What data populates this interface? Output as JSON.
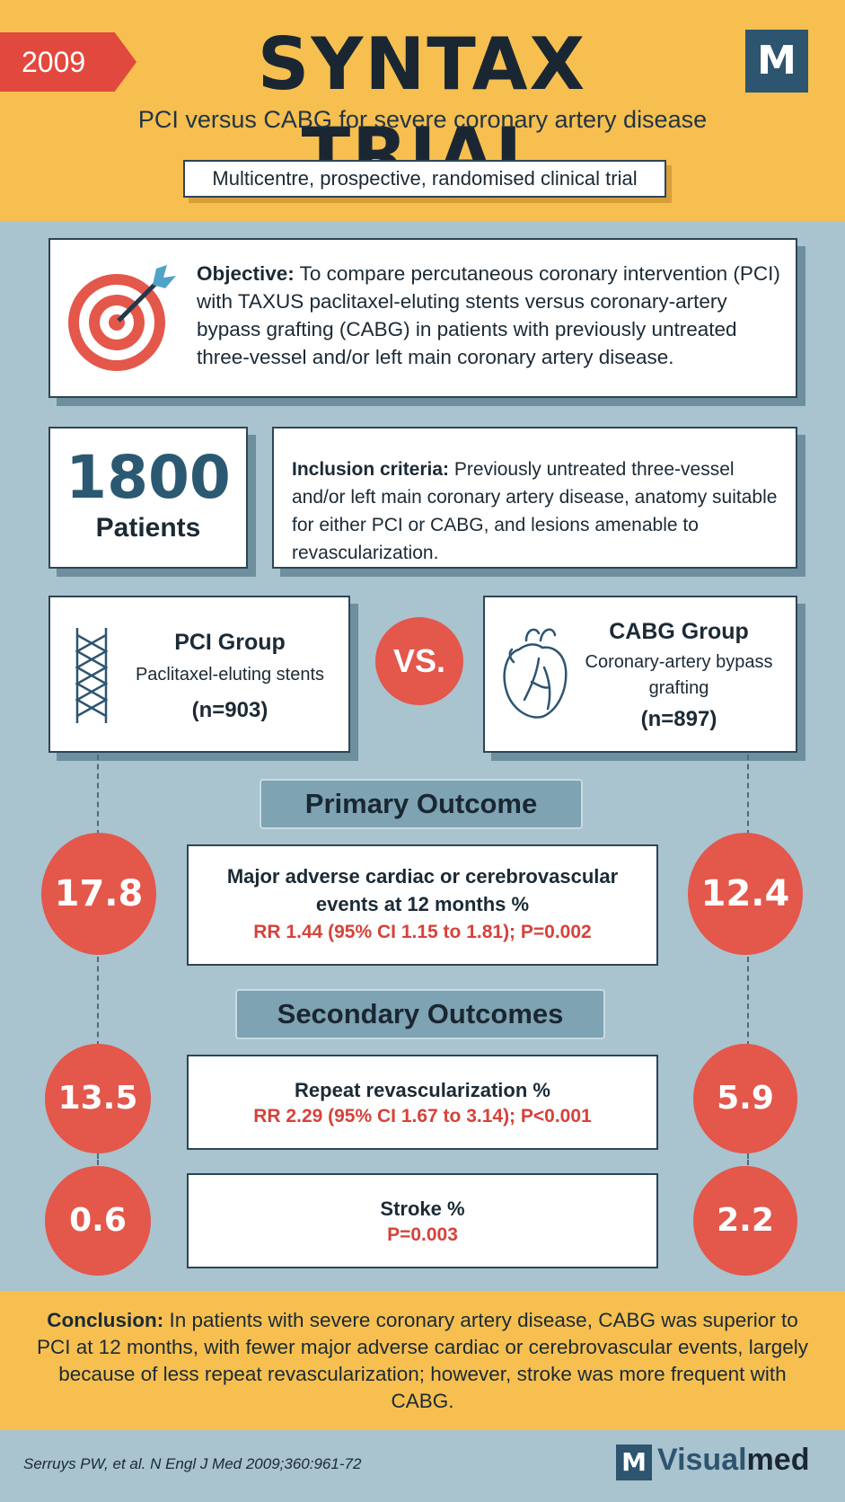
{
  "header": {
    "year": "2009",
    "title": "SYNTAX TRIAL",
    "logo_letter": "M",
    "subtitle": "PCI versus CABG for severe coronary artery disease",
    "design": "Multicentre, prospective, randomised clinical trial"
  },
  "objective": {
    "lead": "Objective:",
    "text": "To compare percutaneous coronary intervention (PCI) with TAXUS paclitaxel-eluting stents versus coronary-artery bypass grafting (CABG) in patients with previously untreated three-vessel and/or left main coronary artery disease.",
    "icon": "target-icon"
  },
  "patients": {
    "number": "1800",
    "label": "Patients"
  },
  "inclusion": {
    "lead": "Inclusion criteria:",
    "text": "Previously untreated three-vessel and/or left main coronary artery disease, anatomy suitable for either PCI or CABG, and lesions amenable to revascularization."
  },
  "groups": {
    "pci": {
      "name": "PCI Group",
      "desc": "Paclitaxel-eluting stents",
      "n": "(n=903)",
      "icon": "stent-icon"
    },
    "vs": "VS.",
    "cabg": {
      "name": "CABG Group",
      "desc_line1": "Coronary-artery bypass",
      "desc_line2": "grafting",
      "n": "(n=897)",
      "icon": "heart-icon"
    }
  },
  "primary": {
    "heading": "Primary Outcome",
    "label_line1": "Major adverse cardiac or cerebrovascular",
    "label_line2": "events at 12 months %",
    "stat": "RR 1.44 (95% CI 1.15 to 1.81); P=0.002",
    "pci_value": "17.8",
    "cabg_value": "12.4"
  },
  "secondary": {
    "heading": "Secondary Outcomes",
    "items": [
      {
        "label": "Repeat revascularization %",
        "stat": "RR 2.29 (95% CI 1.67 to 3.14); P<0.001",
        "pci_value": "13.5",
        "cabg_value": "5.9"
      },
      {
        "label": "Stroke %",
        "stat": "P=0.003",
        "pci_value": "0.6",
        "cabg_value": "2.2"
      }
    ]
  },
  "conclusion": {
    "lead": "Conclusion:",
    "text": "In patients with severe coronary artery disease, CABG was superior to PCI at 12 months, with fewer major adverse cardiac or cerebrovascular events, largely because of less repeat revascularization; however, stroke was more frequent with CABG."
  },
  "footer": {
    "citation": "Serruys PW, et al. N Engl J Med 2009;360:961-72",
    "logo_letter": "M",
    "brand_part1": "Visual",
    "brand_part2": "med"
  },
  "colors": {
    "header_bg": "#f6bf4f",
    "accent_red": "#e4574b",
    "page_bg": "#a9c3cf",
    "navy": "#2d5570"
  }
}
